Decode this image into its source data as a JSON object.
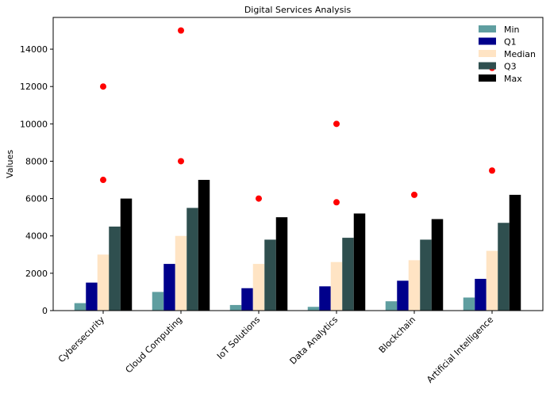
{
  "chart_data": {
    "type": "bar",
    "title": "Digital Services Analysis",
    "xlabel": "",
    "ylabel": "Values",
    "ylim": [
      0,
      15700
    ],
    "yticks": [
      0,
      2000,
      4000,
      6000,
      8000,
      10000,
      12000,
      14000
    ],
    "categories": [
      "Cybersecurity",
      "Cloud Computing",
      "IoT Solutions",
      "Data Analytics",
      "Blockchain",
      "Artificial Intelligence"
    ],
    "series": [
      {
        "name": "Min",
        "color": "#5f9ea0",
        "values": [
          400,
          1000,
          300,
          200,
          500,
          700
        ]
      },
      {
        "name": "Q1",
        "color": "#00008b",
        "values": [
          1500,
          2500,
          1200,
          1300,
          1600,
          1700
        ]
      },
      {
        "name": "Median",
        "color": "#ffe4c4",
        "values": [
          3000,
          4000,
          2500,
          2600,
          2700,
          3200
        ]
      },
      {
        "name": "Q3",
        "color": "#2f4f4f",
        "values": [
          4500,
          5500,
          3800,
          3900,
          3800,
          4700
        ]
      },
      {
        "name": "Max",
        "color": "#000000",
        "values": [
          6000,
          7000,
          5000,
          5200,
          4900,
          6200
        ]
      }
    ],
    "outliers": {
      "color": "#ff0000",
      "points": [
        {
          "category": "Cybersecurity",
          "values": [
            7000,
            12000
          ]
        },
        {
          "category": "Cloud Computing",
          "values": [
            8000,
            15000
          ]
        },
        {
          "category": "IoT Solutions",
          "values": [
            6000
          ]
        },
        {
          "category": "Data Analytics",
          "values": [
            5800,
            10000
          ]
        },
        {
          "category": "Blockchain",
          "values": [
            6200
          ]
        },
        {
          "category": "Artificial Intelligence",
          "values": [
            7500,
            13000
          ]
        }
      ]
    },
    "legend_position": "top-right",
    "grid": false
  }
}
